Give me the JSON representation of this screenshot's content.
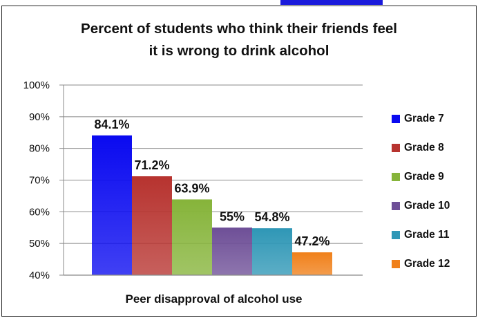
{
  "chart_data": {
    "type": "bar",
    "title_lines": [
      "Percent of students who think their friends feel",
      "it is wrong to drink alcohol"
    ],
    "xlabel": "Peer disapproval of alcohol use",
    "ylabel": "",
    "categories": [
      "Peer disapproval of alcohol use"
    ],
    "series": [
      {
        "name": "Grade 7",
        "values": [
          84.1
        ],
        "label": "84.1%",
        "color": "#0a0af0"
      },
      {
        "name": "Grade 8",
        "values": [
          71.2
        ],
        "label": "71.2%",
        "color": "#b7332f"
      },
      {
        "name": "Grade 9",
        "values": [
          63.9
        ],
        "label": "63.9%",
        "color": "#86b43a"
      },
      {
        "name": "Grade 10",
        "values": [
          55
        ],
        "label": "55%",
        "color": "#6e4f97"
      },
      {
        "name": "Grade 11",
        "values": [
          54.8
        ],
        "label": "54.8%",
        "color": "#2f97b6"
      },
      {
        "name": "Grade 12",
        "values": [
          47.2
        ],
        "label": "47.2%",
        "color": "#f0801a"
      }
    ],
    "ylim": [
      40,
      100
    ],
    "yticks": [
      40,
      50,
      60,
      70,
      80,
      90,
      100
    ],
    "ytick_labels": [
      "40%",
      "50%",
      "60%",
      "70%",
      "80%",
      "90%",
      "100%"
    ],
    "grid": true,
    "legend_position": "right"
  }
}
